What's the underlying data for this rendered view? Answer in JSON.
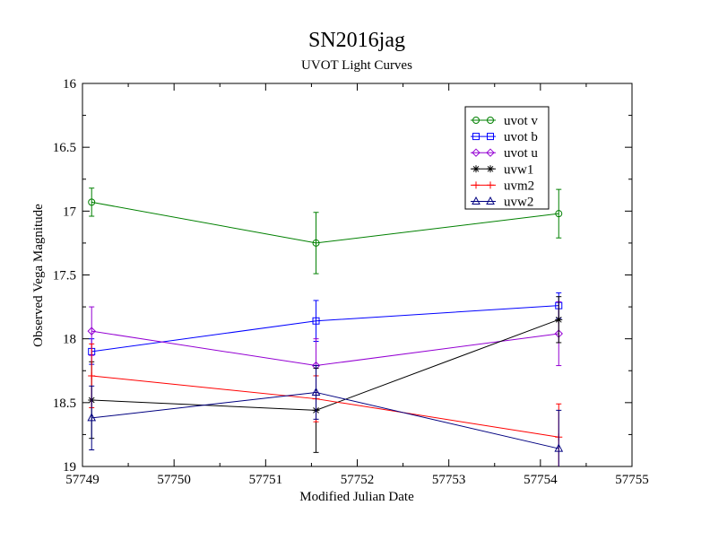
{
  "chart_data": {
    "type": "line",
    "title": "SN2016jag",
    "subtitle": "UVOT Light Curves",
    "xlabel": "Modified Julian Date",
    "ylabel": "Observed Vega Magnitude",
    "xlim": [
      57749,
      57755
    ],
    "ylim": [
      16,
      19
    ],
    "y_inverted": true,
    "grid": false,
    "legend_position": "top-right",
    "x_ticks": [
      "57749",
      "57750",
      "57751",
      "57752",
      "57753",
      "57754",
      "57755"
    ],
    "y_ticks": [
      "16",
      "16.5",
      "17",
      "17.5",
      "18",
      "18.5",
      "19"
    ],
    "series": [
      {
        "name": "uvot v",
        "color": "#008000",
        "marker": "circle",
        "x": [
          57749.1,
          57751.55,
          57754.2
        ],
        "y": [
          16.93,
          17.25,
          17.02
        ],
        "err": [
          0.11,
          0.24,
          0.19
        ]
      },
      {
        "name": "uvot b",
        "color": "#0000ff",
        "marker": "square",
        "x": [
          57749.1,
          57751.55,
          57754.2
        ],
        "y": [
          18.1,
          17.86,
          17.74
        ],
        "err": [
          0.1,
          0.16,
          0.1
        ]
      },
      {
        "name": "uvot u",
        "color": "#9400d3",
        "marker": "diamond",
        "x": [
          57749.1,
          57751.55,
          57754.2
        ],
        "y": [
          17.94,
          18.21,
          17.96
        ],
        "err": [
          0.19,
          0.21,
          0.25
        ]
      },
      {
        "name": "uvw1",
        "color": "#000000",
        "marker": "star",
        "x": [
          57749.1,
          57751.55,
          57754.2
        ],
        "y": [
          18.48,
          18.56,
          17.85
        ],
        "err": [
          0.3,
          0.33,
          0.18
        ]
      },
      {
        "name": "uvm2",
        "color": "#ff0000",
        "marker": "plus",
        "x": [
          57749.1,
          57751.55,
          57754.2
        ],
        "y": [
          18.29,
          18.47,
          18.77
        ],
        "err": [
          0.25,
          0.18,
          0.26
        ]
      },
      {
        "name": "uvw2",
        "color": "#000080",
        "marker": "triangle",
        "x": [
          57749.1,
          57751.55,
          57754.2
        ],
        "y": [
          18.62,
          18.42,
          18.86
        ],
        "err": [
          0.25,
          0.21,
          0.3
        ]
      }
    ]
  }
}
